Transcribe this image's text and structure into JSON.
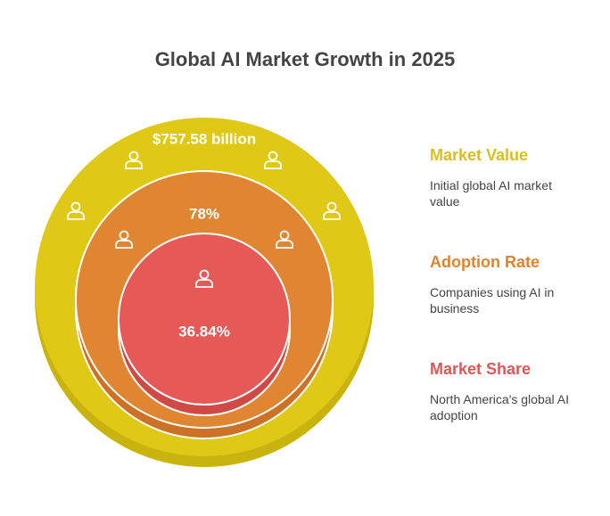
{
  "title": "Global AI Market Growth in 2025",
  "rings": [
    {
      "value": "$757.58 billion",
      "name": "Market Value",
      "description": "Initial global AI market value",
      "color": "#dfc816",
      "shade": "#c9b30e",
      "legend_color": "#d8c01c"
    },
    {
      "value": "78%",
      "name": "Adoption Rate",
      "description": "Companies using AI in business",
      "color": "#e08532",
      "shade": "#cc7226",
      "legend_color": "#e0822e"
    },
    {
      "value": "36.84%",
      "name": "Market Share",
      "description": "North America's global AI adoption",
      "color": "#e55a56",
      "shade": "#cf4a47",
      "legend_color": "#e05656"
    }
  ]
}
